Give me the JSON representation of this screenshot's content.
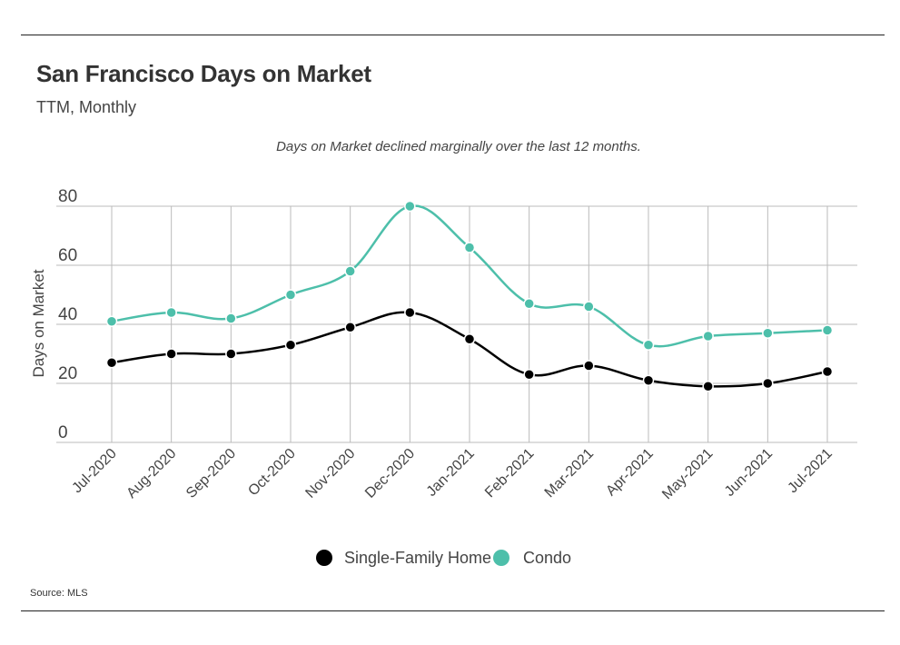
{
  "header": {
    "title": "San Francisco Days on Market",
    "subtitle": "TTM, Monthly"
  },
  "footer": {
    "source": "Source:  MLS"
  },
  "colors": {
    "single_family": "#000000",
    "condo": "#4dbfaa",
    "grid": "#bbbbbb",
    "axis_text": "#444444"
  },
  "chart_data": {
    "type": "line",
    "annotation": "Days on Market declined marginally over the last 12 months.",
    "xlabel": "",
    "ylabel": "Days on Market",
    "ylim": [
      0,
      80
    ],
    "yticks": [
      0,
      20,
      40,
      60,
      80
    ],
    "grid": true,
    "legend_position": "bottom-center",
    "categories": [
      "Jul-2020",
      "Aug-2020",
      "Sep-2020",
      "Oct-2020",
      "Nov-2020",
      "Dec-2020",
      "Jan-2021",
      "Feb-2021",
      "Mar-2021",
      "Apr-2021",
      "May-2021",
      "Jun-2021",
      "Jul-2021"
    ],
    "series": [
      {
        "name": "Single-Family Home",
        "color": "#000000",
        "values": [
          27,
          30,
          30,
          33,
          39,
          44,
          35,
          23,
          26,
          21,
          19,
          20,
          24
        ]
      },
      {
        "name": "Condo",
        "color": "#4dbfaa",
        "values": [
          41,
          44,
          42,
          50,
          58,
          80,
          66,
          47,
          46,
          33,
          36,
          37,
          38
        ]
      }
    ]
  }
}
